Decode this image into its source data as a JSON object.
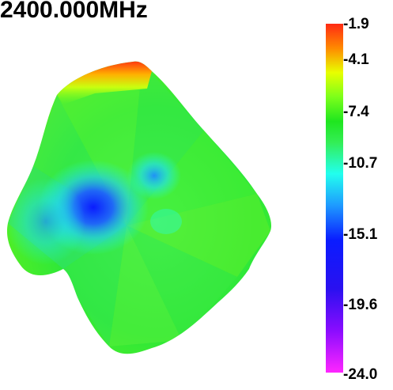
{
  "title": "2400.000MHz",
  "colorbar": {
    "ticks": [
      "-1.9",
      "-4.1",
      "-7.4",
      "-10.7",
      "-15.1",
      "-19.6",
      "-24.0"
    ]
  }
}
